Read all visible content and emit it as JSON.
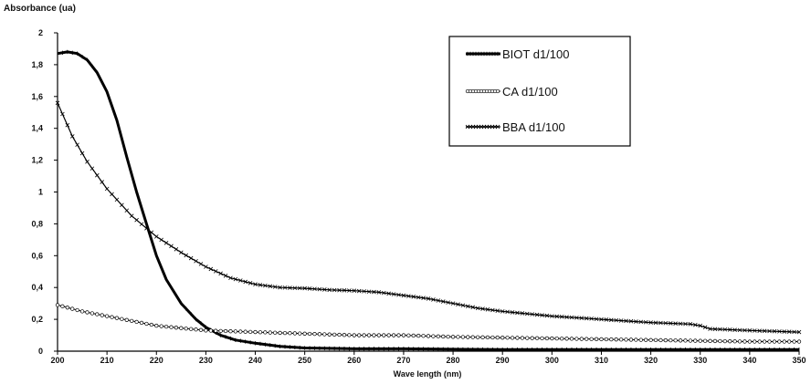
{
  "chart_data": {
    "type": "line",
    "title": "",
    "ylabel": "Absorbance (ua)",
    "xlabel": "Wave length (nm)",
    "xlim": [
      200,
      350
    ],
    "ylim": [
      0,
      2
    ],
    "x_ticks": [
      200,
      210,
      220,
      230,
      240,
      250,
      260,
      270,
      280,
      290,
      300,
      310,
      320,
      330,
      340,
      350
    ],
    "y_ticks": [
      0,
      0.2,
      0.4,
      0.6,
      0.8,
      1,
      1.2,
      1.4,
      1.6,
      1.8,
      2
    ],
    "y_tick_labels": [
      "0",
      "0,2",
      "0,4",
      "0,6",
      "0,8",
      "1",
      "1,2",
      "1,4",
      "1,6",
      "1,8",
      "2"
    ],
    "grid": false,
    "legend_position": "top-right",
    "series": [
      {
        "name": "BIOT d1/100",
        "marker": "bar",
        "x": [
          200,
          202,
          204,
          206,
          208,
          210,
          212,
          214,
          216,
          218,
          220,
          222,
          225,
          228,
          230,
          233,
          236,
          240,
          245,
          250,
          260,
          270,
          280,
          290,
          300,
          320,
          350
        ],
        "y": [
          1.87,
          1.88,
          1.87,
          1.83,
          1.75,
          1.63,
          1.45,
          1.22,
          1.0,
          0.8,
          0.6,
          0.45,
          0.3,
          0.2,
          0.15,
          0.1,
          0.07,
          0.05,
          0.03,
          0.02,
          0.015,
          0.015,
          0.012,
          0.01,
          0.01,
          0.01,
          0.01
        ]
      },
      {
        "name": "CA d1/100",
        "marker": "circle",
        "x": [
          200,
          205,
          210,
          215,
          220,
          230,
          240,
          250,
          260,
          270,
          280,
          290,
          300,
          310,
          320,
          330,
          340,
          350
        ],
        "y": [
          0.29,
          0.25,
          0.22,
          0.19,
          0.16,
          0.13,
          0.12,
          0.11,
          0.1,
          0.1,
          0.09,
          0.085,
          0.08,
          0.075,
          0.07,
          0.065,
          0.06,
          0.06
        ]
      },
      {
        "name": "BBA d1/100",
        "marker": "x",
        "x": [
          200,
          203,
          206,
          210,
          215,
          220,
          225,
          230,
          235,
          240,
          245,
          250,
          255,
          260,
          265,
          270,
          275,
          280,
          285,
          290,
          300,
          310,
          320,
          328,
          330,
          332,
          340,
          350
        ],
        "y": [
          1.56,
          1.35,
          1.19,
          1.02,
          0.85,
          0.72,
          0.62,
          0.53,
          0.46,
          0.42,
          0.4,
          0.395,
          0.385,
          0.38,
          0.37,
          0.35,
          0.33,
          0.3,
          0.27,
          0.25,
          0.22,
          0.2,
          0.18,
          0.17,
          0.16,
          0.14,
          0.13,
          0.12
        ]
      }
    ]
  }
}
